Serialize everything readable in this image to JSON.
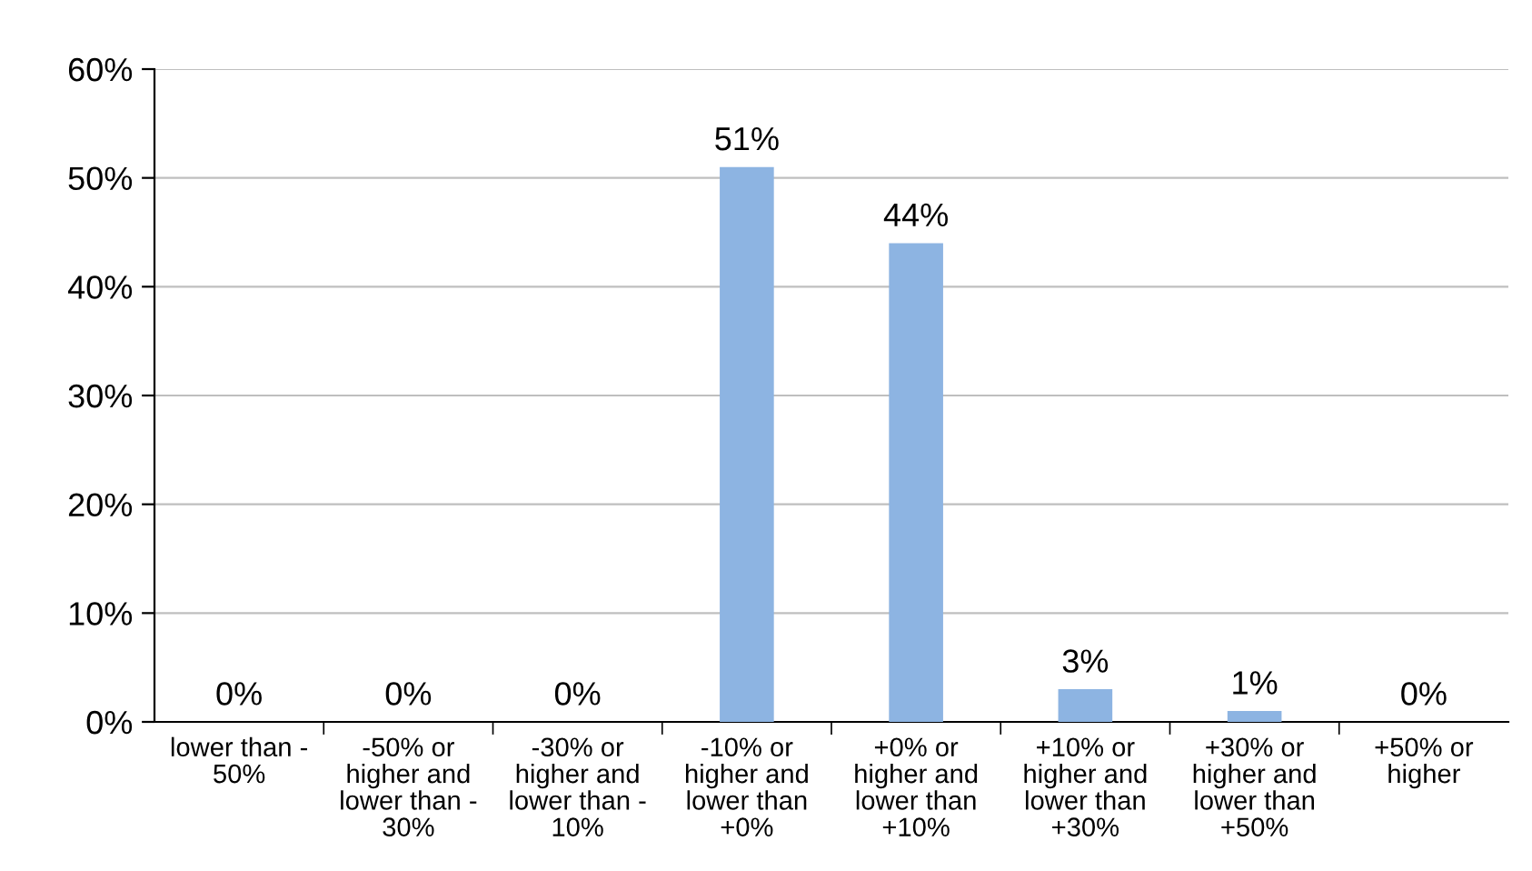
{
  "chart_data": {
    "type": "bar",
    "categories": [
      "lower than -\n50%",
      "-50% or\nhigher and\nlower than -\n30%",
      "-30% or\nhigher and\nlower than -\n10%",
      "-10% or\nhigher and\nlower than\n+0%",
      "+0% or\nhigher and\nlower than\n+10%",
      "+10% or\nhigher and\nlower than\n+30%",
      "+30% or\nhigher and\nlower than\n+50%",
      "+50% or\nhigher"
    ],
    "values": [
      0,
      0,
      0,
      51,
      44,
      3,
      1,
      0
    ],
    "color": "#8db4e2",
    "value_labels": [
      "0%",
      "0%",
      "0%",
      "51%",
      "44%",
      "3%",
      "1%",
      "0%"
    ],
    "ylim": [
      0,
      60
    ],
    "yticks": [
      {
        "value": 0,
        "label": "0%"
      },
      {
        "value": 10,
        "label": "10%"
      },
      {
        "value": 20,
        "label": "20%"
      },
      {
        "value": 30,
        "label": "30%"
      },
      {
        "value": 40,
        "label": "40%"
      },
      {
        "value": 50,
        "label": "50%"
      },
      {
        "value": 60,
        "label": "60%"
      }
    ],
    "grid": "y",
    "legend": false
  }
}
